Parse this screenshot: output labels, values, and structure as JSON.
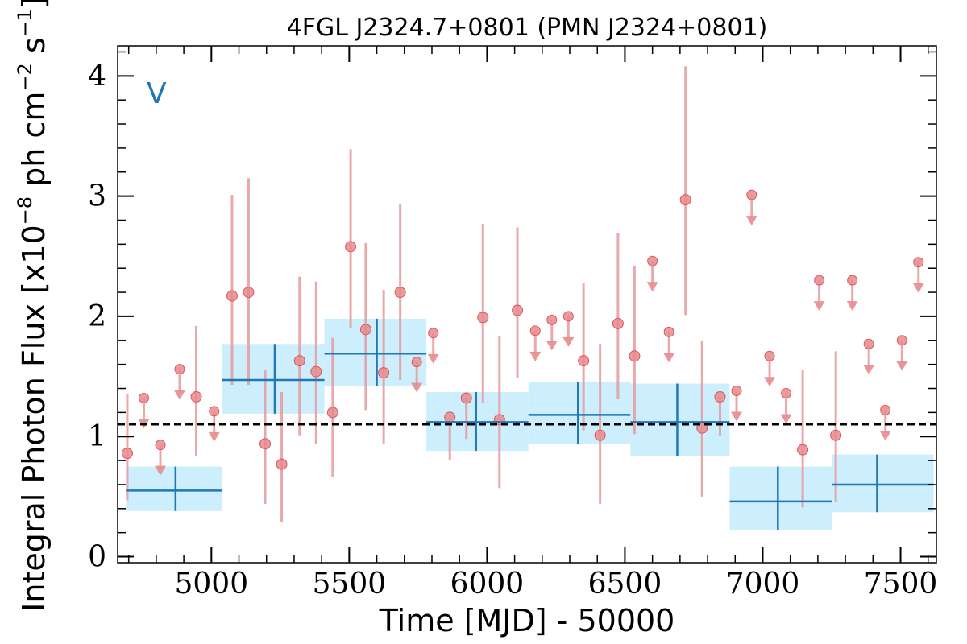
{
  "chart_data": {
    "type": "scatter",
    "title": "4FGL J2324.7+0801 (PMN J2324+0801)",
    "xlabel": "Time [MJD] - 50000",
    "ylabel": "Integral Photon Flux [x10",
    "ylabel_exp1": "−8",
    "ylabel_mid": " ph cm",
    "ylabel_exp2": "−2",
    "ylabel_end": " s",
    "ylabel_exp3": "−1",
    "ylabel_close": "]",
    "band_label": "V",
    "xlim": [
      4660,
      7630
    ],
    "ylim": [
      -0.05,
      4.25
    ],
    "xticks": [
      5000,
      5500,
      6000,
      6500,
      7000,
      7500
    ],
    "xtick_labels": [
      "5000",
      "5500",
      "6000",
      "6500",
      "7000",
      "7500"
    ],
    "yticks": [
      0,
      1,
      2,
      3,
      4
    ],
    "ytick_labels": [
      "0",
      "1",
      "2",
      "3",
      "4"
    ],
    "x_minor_step": 100,
    "y_minor_step": 0.2,
    "mean_flux": 1.1,
    "colors": {
      "points": "#e8898c",
      "points_edge": "#d9585e",
      "errorbars": "#e59a9c",
      "bins": "#1f77b4",
      "band_fill": "#cdeefc",
      "mean_line": "#000000",
      "band_tag": "#1f77b4"
    },
    "detections": [
      {
        "x": 4695,
        "y": 0.86,
        "lo": 0.47,
        "hi": 1.35
      },
      {
        "x": 4945,
        "y": 1.33,
        "lo": 0.84,
        "hi": 1.92
      },
      {
        "x": 5075,
        "y": 2.17,
        "lo": 1.43,
        "hi": 3.01
      },
      {
        "x": 5135,
        "y": 2.2,
        "lo": 1.43,
        "hi": 3.15
      },
      {
        "x": 5195,
        "y": 0.94,
        "lo": 0.44,
        "hi": 1.55
      },
      {
        "x": 5255,
        "y": 0.77,
        "lo": 0.29,
        "hi": 1.37
      },
      {
        "x": 5320,
        "y": 1.63,
        "lo": 1.01,
        "hi": 2.33
      },
      {
        "x": 5380,
        "y": 1.54,
        "lo": 0.94,
        "hi": 2.29
      },
      {
        "x": 5440,
        "y": 1.2,
        "lo": 0.66,
        "hi": 1.82
      },
      {
        "x": 5505,
        "y": 2.58,
        "lo": 1.9,
        "hi": 3.39
      },
      {
        "x": 5560,
        "y": 1.89,
        "lo": 1.22,
        "hi": 2.61
      },
      {
        "x": 5625,
        "y": 1.53,
        "lo": 0.94,
        "hi": 2.22
      },
      {
        "x": 5685,
        "y": 2.2,
        "lo": 1.47,
        "hi": 2.93
      },
      {
        "x": 5865,
        "y": 1.16,
        "lo": 0.8,
        "hi": 1.16
      },
      {
        "x": 5925,
        "y": 1.32,
        "lo": 0.98,
        "hi": 1.32
      },
      {
        "x": 5985,
        "y": 1.99,
        "lo": 1.28,
        "hi": 2.77
      },
      {
        "x": 6045,
        "y": 1.14,
        "lo": 0.57,
        "hi": 1.84
      },
      {
        "x": 6110,
        "y": 2.05,
        "lo": 1.49,
        "hi": 2.74
      },
      {
        "x": 6350,
        "y": 1.63,
        "lo": 1.05,
        "hi": 2.28
      },
      {
        "x": 6410,
        "y": 1.01,
        "lo": 0.44,
        "hi": 1.77
      },
      {
        "x": 6475,
        "y": 1.94,
        "lo": 1.31,
        "hi": 2.69
      },
      {
        "x": 6535,
        "y": 1.67,
        "lo": 1.02,
        "hi": 2.42
      },
      {
        "x": 6720,
        "y": 2.97,
        "lo": 2.01,
        "hi": 4.08
      },
      {
        "x": 6780,
        "y": 1.07,
        "lo": 0.5,
        "hi": 1.8
      },
      {
        "x": 6845,
        "y": 1.33,
        "lo": 1.01,
        "hi": 1.33
      },
      {
        "x": 7145,
        "y": 0.89,
        "lo": 0.41,
        "hi": 1.55
      },
      {
        "x": 7265,
        "y": 1.01,
        "lo": 0.46,
        "hi": 1.71
      }
    ],
    "upper_limits": [
      {
        "x": 4755,
        "y": 1.32
      },
      {
        "x": 4815,
        "y": 0.93
      },
      {
        "x": 4885,
        "y": 1.56
      },
      {
        "x": 5010,
        "y": 1.21
      },
      {
        "x": 5745,
        "y": 1.62
      },
      {
        "x": 5805,
        "y": 1.86
      },
      {
        "x": 6175,
        "y": 1.88
      },
      {
        "x": 6235,
        "y": 1.97
      },
      {
        "x": 6295,
        "y": 2.0
      },
      {
        "x": 6600,
        "y": 2.46
      },
      {
        "x": 6660,
        "y": 1.87
      },
      {
        "x": 6905,
        "y": 1.38
      },
      {
        "x": 6960,
        "y": 3.01
      },
      {
        "x": 7025,
        "y": 1.67
      },
      {
        "x": 7085,
        "y": 1.36
      },
      {
        "x": 7205,
        "y": 2.3
      },
      {
        "x": 7325,
        "y": 2.3
      },
      {
        "x": 7385,
        "y": 1.77
      },
      {
        "x": 7445,
        "y": 1.22
      },
      {
        "x": 7505,
        "y": 1.8
      },
      {
        "x": 7565,
        "y": 2.45
      }
    ],
    "bins": [
      {
        "x0": 4690,
        "x1": 5040,
        "xc": 4870,
        "y": 0.55,
        "lo": 0.38,
        "hi": 0.75
      },
      {
        "x0": 5040,
        "x1": 5410,
        "xc": 5230,
        "y": 1.47,
        "lo": 1.19,
        "hi": 1.77
      },
      {
        "x0": 5410,
        "x1": 5780,
        "xc": 5600,
        "y": 1.69,
        "lo": 1.42,
        "hi": 1.98
      },
      {
        "x0": 5780,
        "x1": 6150,
        "xc": 5960,
        "y": 1.12,
        "lo": 0.88,
        "hi": 1.37
      },
      {
        "x0": 6150,
        "x1": 6520,
        "xc": 6330,
        "y": 1.18,
        "lo": 0.94,
        "hi": 1.45
      },
      {
        "x0": 6520,
        "x1": 6880,
        "xc": 6690,
        "y": 1.12,
        "lo": 0.84,
        "hi": 1.44
      },
      {
        "x0": 6880,
        "x1": 7250,
        "xc": 7055,
        "y": 0.46,
        "lo": 0.22,
        "hi": 0.75
      },
      {
        "x0": 7250,
        "x1": 7620,
        "xc": 7415,
        "y": 0.6,
        "lo": 0.37,
        "hi": 0.85
      }
    ]
  }
}
